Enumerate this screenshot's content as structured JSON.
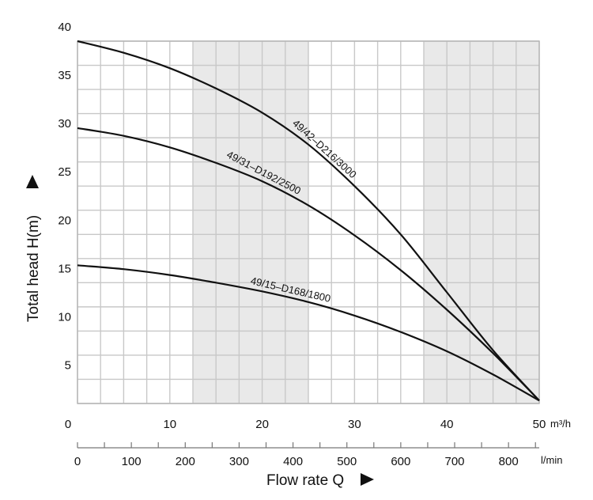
{
  "chart_data": {
    "type": "line",
    "xlabel": "Flow rate Q",
    "ylabel": "Total head H(m)",
    "x_unit_primary": "m³/h",
    "x_unit_secondary": "l/min",
    "xlim": [
      0,
      50
    ],
    "ylim": [
      2.5,
      40
    ],
    "primary_x_ticks": [
      {
        "value": 0,
        "label": "0"
      },
      {
        "value": 10,
        "label": "10"
      },
      {
        "value": 20,
        "label": "20"
      },
      {
        "value": 30,
        "label": "30"
      },
      {
        "value": 40,
        "label": "40"
      },
      {
        "value": 50,
        "label": "50"
      }
    ],
    "secondary_x_ticks": [
      {
        "value": 0,
        "label": "0"
      },
      {
        "value": 100,
        "label": "100"
      },
      {
        "value": 200,
        "label": "200"
      },
      {
        "value": 300,
        "label": "300"
      },
      {
        "value": 400,
        "label": "400"
      },
      {
        "value": 500,
        "label": "500"
      },
      {
        "value": 600,
        "label": "600"
      },
      {
        "value": 700,
        "label": "700"
      },
      {
        "value": 800,
        "label": "800"
      }
    ],
    "y_ticks": [
      {
        "value": 5,
        "label": "5"
      },
      {
        "value": 10,
        "label": "10"
      },
      {
        "value": 15,
        "label": "15"
      },
      {
        "value": 20,
        "label": "20"
      },
      {
        "value": 25,
        "label": "25"
      },
      {
        "value": 30,
        "label": "30"
      },
      {
        "value": 35,
        "label": "35"
      },
      {
        "value": 40,
        "label": "40"
      }
    ],
    "grid": true,
    "shaded_x_bands": [
      [
        12.5,
        25
      ],
      [
        37.5,
        50
      ]
    ],
    "series": [
      {
        "name": "49/42–D216/3000",
        "x": [
          0,
          5,
          10,
          15,
          20,
          25,
          30,
          35,
          40,
          45,
          50
        ],
        "y": [
          40.0,
          38.8,
          37.2,
          35.1,
          32.6,
          29.3,
          25.0,
          20.0,
          14.0,
          8.0,
          2.8
        ]
      },
      {
        "name": "49/31–D192/2500",
        "x": [
          0,
          5,
          10,
          15,
          20,
          25,
          30,
          35,
          40,
          45,
          50
        ],
        "y": [
          31.0,
          30.2,
          29.0,
          27.4,
          25.5,
          23.0,
          19.9,
          16.3,
          12.2,
          7.7,
          2.8
        ]
      },
      {
        "name": "49/15–D168/1800",
        "x": [
          0,
          5,
          10,
          15,
          20,
          25,
          30,
          35,
          40,
          45,
          50
        ],
        "y": [
          16.8,
          16.4,
          15.8,
          15.0,
          14.1,
          13.0,
          11.6,
          9.9,
          7.9,
          5.5,
          2.8
        ]
      }
    ],
    "curve_labels": [
      "49/42–D216/3000",
      "49/31–D192/2500",
      "49/15–D168/1800"
    ]
  }
}
